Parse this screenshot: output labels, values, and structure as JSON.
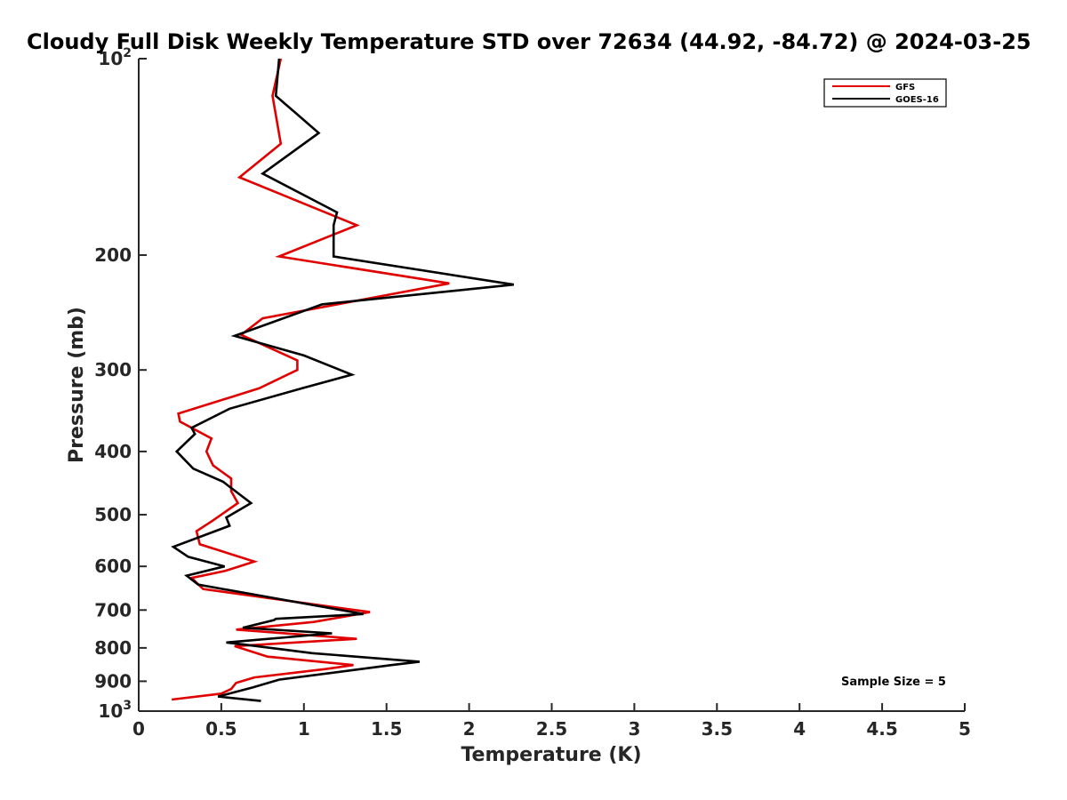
{
  "chart_data": {
    "type": "line",
    "title": "Cloudy Full Disk Weekly Temperature STD over 72634 (44.92, -84.72) @ 2024-03-25",
    "xlabel": "Temperature (K)",
    "ylabel": "Pressure (mb)",
    "xlim": [
      0,
      5
    ],
    "ylim": [
      100,
      1000
    ],
    "y_scale": "log",
    "y_reversed": true,
    "x_ticks": [
      0,
      0.5,
      1,
      1.5,
      2,
      2.5,
      3,
      3.5,
      4,
      4.5,
      5
    ],
    "x_tick_labels": [
      "0",
      "0.5",
      "1",
      "1.5",
      "2",
      "2.5",
      "3",
      "3.5",
      "4",
      "4.5",
      "5"
    ],
    "y_ticks": [
      {
        "value": 100,
        "base": "10",
        "exp": "2"
      },
      {
        "value": 200,
        "label": "200"
      },
      {
        "value": 300,
        "label": "300"
      },
      {
        "value": 400,
        "label": "400"
      },
      {
        "value": 500,
        "label": "500"
      },
      {
        "value": 600,
        "label": "600"
      },
      {
        "value": 700,
        "label": "700"
      },
      {
        "value": 800,
        "label": "800"
      },
      {
        "value": 900,
        "label": "900"
      },
      {
        "value": 1000,
        "base": "10",
        "exp": "3"
      }
    ],
    "legend_position": "top-right",
    "annotation": "Sample Size = 5",
    "series": [
      {
        "name": "GFS",
        "color": "#e00000",
        "points": [
          [
            0.86,
            100
          ],
          [
            0.81,
            114
          ],
          [
            0.86,
            135
          ],
          [
            0.61,
            152
          ],
          [
            1.32,
            180
          ],
          [
            0.85,
            201
          ],
          [
            1.88,
            221
          ],
          [
            0.75,
            250
          ],
          [
            0.62,
            265
          ],
          [
            0.96,
            290
          ],
          [
            0.96,
            300
          ],
          [
            0.73,
            320
          ],
          [
            0.24,
            350
          ],
          [
            0.25,
            360
          ],
          [
            0.44,
            382
          ],
          [
            0.41,
            400
          ],
          [
            0.45,
            420
          ],
          [
            0.56,
            440
          ],
          [
            0.56,
            460
          ],
          [
            0.6,
            480
          ],
          [
            0.45,
            510
          ],
          [
            0.35,
            530
          ],
          [
            0.37,
            555
          ],
          [
            0.7,
            590
          ],
          [
            0.52,
            610
          ],
          [
            0.32,
            625
          ],
          [
            0.39,
            650
          ],
          [
            1.4,
            705
          ],
          [
            1.06,
            730
          ],
          [
            0.59,
            750
          ],
          [
            1.32,
            775
          ],
          [
            0.58,
            795
          ],
          [
            0.78,
            825
          ],
          [
            1.3,
            850
          ],
          [
            1.13,
            862
          ],
          [
            0.7,
            888
          ],
          [
            0.59,
            905
          ],
          [
            0.56,
            925
          ],
          [
            0.5,
            940
          ],
          [
            0.2,
            960
          ]
        ]
      },
      {
        "name": "GOES-16",
        "color": "#000000",
        "points": [
          [
            0.85,
            100
          ],
          [
            0.83,
            114
          ],
          [
            1.09,
            130
          ],
          [
            0.75,
            150
          ],
          [
            1.2,
            172
          ],
          [
            1.18,
            180
          ],
          [
            1.18,
            201
          ],
          [
            2.27,
            222
          ],
          [
            1.11,
            238
          ],
          [
            0.58,
            266
          ],
          [
            1.0,
            285
          ],
          [
            1.29,
            305
          ],
          [
            0.99,
            320
          ],
          [
            0.55,
            344
          ],
          [
            0.32,
            368
          ],
          [
            0.34,
            376
          ],
          [
            0.23,
            400
          ],
          [
            0.33,
            425
          ],
          [
            0.51,
            445
          ],
          [
            0.68,
            480
          ],
          [
            0.53,
            505
          ],
          [
            0.55,
            520
          ],
          [
            0.21,
            560
          ],
          [
            0.3,
            580
          ],
          [
            0.52,
            600
          ],
          [
            0.29,
            620
          ],
          [
            0.36,
            640
          ],
          [
            1.36,
            710
          ],
          [
            0.83,
            722
          ],
          [
            0.82,
            725
          ],
          [
            0.63,
            745
          ],
          [
            1.17,
            760
          ],
          [
            0.53,
            785
          ],
          [
            0.63,
            790
          ],
          [
            1.05,
            815
          ],
          [
            1.7,
            840
          ],
          [
            1.53,
            850
          ],
          [
            0.85,
            895
          ],
          [
            0.69,
            920
          ],
          [
            0.48,
            950
          ],
          [
            0.74,
            965
          ]
        ]
      }
    ]
  }
}
